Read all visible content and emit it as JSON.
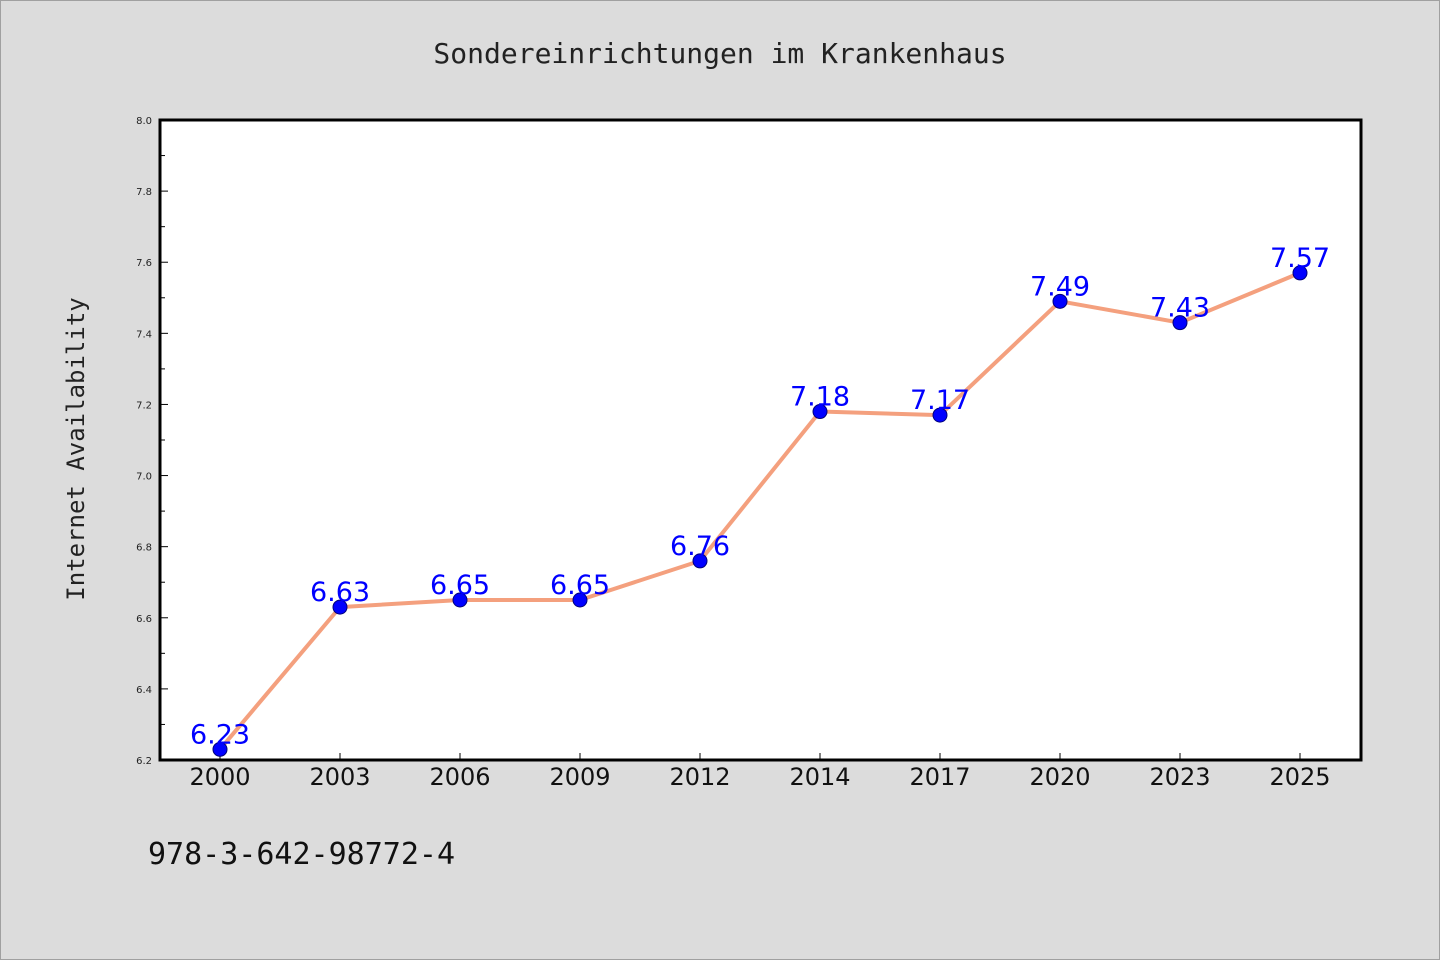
{
  "footer": "978-3-642-98772-4",
  "chart_data": {
    "type": "line",
    "title": "Sondereinrichtungen im Krankenhaus",
    "xlabel": "",
    "ylabel": "Internet Availability",
    "ylim": [
      6.2,
      8.0
    ],
    "yticks": [
      "6.2",
      "6.4",
      "6.6",
      "6.8",
      "7.0",
      "7.2",
      "7.4",
      "7.6",
      "7.8",
      "8.0"
    ],
    "categories": [
      "2000",
      "2003",
      "2006",
      "2009",
      "2012",
      "2014",
      "2017",
      "2020",
      "2023",
      "2025"
    ],
    "values": [
      6.23,
      6.63,
      6.65,
      6.65,
      6.76,
      7.18,
      7.17,
      7.49,
      7.43,
      7.57
    ],
    "data_labels": [
      "6.23",
      "6.63",
      "6.65",
      "6.65",
      "6.76",
      "7.18",
      "7.17",
      "7.49",
      "7.43",
      "7.57"
    ],
    "grid": false,
    "colors": {
      "line": "#f4a07e",
      "marker": "#0000ff",
      "label": "#0000ff",
      "background": "#dcdcdc",
      "plot_background": "#ffffff"
    }
  }
}
